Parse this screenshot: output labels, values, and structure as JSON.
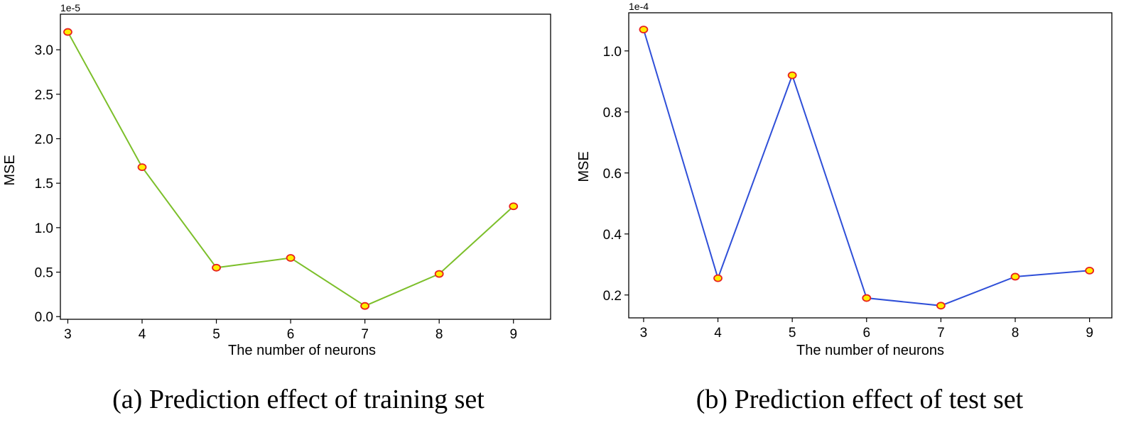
{
  "chart_data": [
    {
      "type": "line",
      "caption": "(a) Prediction effect of training set",
      "xlabel": "The number of neurons",
      "ylabel": "MSE",
      "y_offset_label": "1e-5",
      "x": [
        3,
        4,
        5,
        6,
        7,
        8,
        9
      ],
      "series": [
        {
          "values": [
            3.2,
            1.68,
            0.55,
            0.66,
            0.12,
            0.48,
            1.24
          ],
          "color": "#7cbf2a"
        }
      ],
      "marker_fill": "#ffee00",
      "marker_edge": "#e8201e",
      "xlim": [
        2.9,
        9.5
      ],
      "ylim": [
        -0.03,
        3.4
      ],
      "x_ticks": [
        3,
        4,
        5,
        6,
        7,
        8,
        9
      ],
      "y_ticks": [
        0.0,
        0.5,
        1.0,
        1.5,
        2.0,
        2.5,
        3.0
      ],
      "y_tick_labels": [
        "0.0",
        "0.5",
        "1.0",
        "1.5",
        "2.0",
        "2.5",
        "3.0"
      ],
      "grid": false
    },
    {
      "type": "line",
      "caption": "(b) Prediction effect of test set",
      "xlabel": "The number of neurons",
      "ylabel": "MSE",
      "y_offset_label": "1e-4",
      "x": [
        3,
        4,
        5,
        6,
        7,
        8,
        9
      ],
      "series": [
        {
          "values": [
            1.07,
            0.255,
            0.92,
            0.19,
            0.165,
            0.26,
            0.28
          ],
          "color": "#2f4fd8"
        }
      ],
      "marker_fill": "#ffee00",
      "marker_edge": "#e8201e",
      "xlim": [
        2.8,
        9.3
      ],
      "ylim": [
        0.125,
        1.125
      ],
      "x_ticks": [
        3,
        4,
        5,
        6,
        7,
        8,
        9
      ],
      "y_ticks": [
        0.2,
        0.4,
        0.6,
        0.8,
        1.0
      ],
      "y_tick_labels": [
        "0.2",
        "0.4",
        "0.6",
        "0.8",
        "1.0"
      ],
      "grid": false
    }
  ]
}
